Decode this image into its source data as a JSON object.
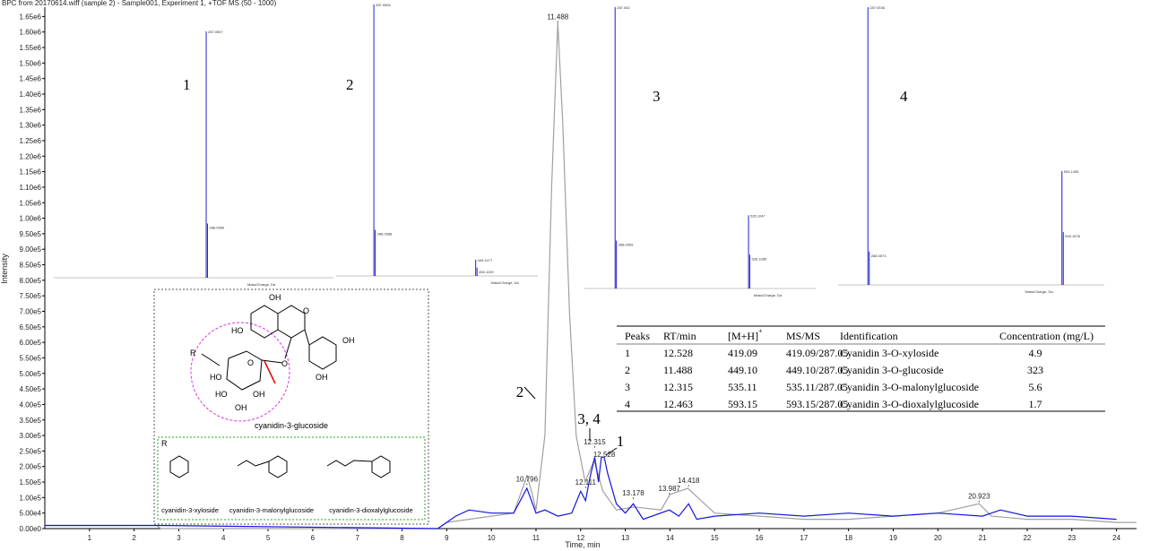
{
  "chart_data": {
    "type": "line",
    "title": "BPC from 20170614.wiff (sample 2) - Sample001, Experiment 1, +TOF MS (50 - 1000)",
    "x_label": "Time, min",
    "y_label": "Intensity",
    "xlim": [
      0,
      24.45
    ],
    "ylim": [
      0,
      1680000
    ],
    "xticks": [
      1,
      2,
      3,
      4,
      5,
      6,
      7,
      8,
      9,
      10,
      11,
      12,
      13,
      14,
      15,
      16,
      17,
      18,
      19,
      20,
      21,
      22,
      23,
      24
    ],
    "yticks": [
      {
        "value": 0,
        "label": "0.00e0"
      },
      {
        "value": 50000,
        "label": "5.00e4"
      },
      {
        "value": 100000,
        "label": "1.00e5"
      },
      {
        "value": 150000,
        "label": "1.50e5"
      },
      {
        "value": 200000,
        "label": "2.00e5"
      },
      {
        "value": 250000,
        "label": "2.50e5"
      },
      {
        "value": 300000,
        "label": "3.00e5"
      },
      {
        "value": 350000,
        "label": "3.50e5"
      },
      {
        "value": 400000,
        "label": "4.00e5"
      },
      {
        "value": 450000,
        "label": "4.50e5"
      },
      {
        "value": 500000,
        "label": "5.00e5"
      },
      {
        "value": 550000,
        "label": "5.50e5"
      },
      {
        "value": 600000,
        "label": "6.00e5"
      },
      {
        "value": 650000,
        "label": "6.50e5"
      },
      {
        "value": 700000,
        "label": "7.00e5"
      },
      {
        "value": 750000,
        "label": "7.50e5"
      },
      {
        "value": 800000,
        "label": "8.00e5"
      },
      {
        "value": 850000,
        "label": "8.50e5"
      },
      {
        "value": 900000,
        "label": "9.00e5"
      },
      {
        "value": 950000,
        "label": "9.50e5"
      },
      {
        "value": 1000000,
        "label": "1.00e6"
      },
      {
        "value": 1050000,
        "label": "1.05e6"
      },
      {
        "value": 1100000,
        "label": "1.10e6"
      },
      {
        "value": 1150000,
        "label": "1.15e6"
      },
      {
        "value": 1200000,
        "label": "1.20e6"
      },
      {
        "value": 1250000,
        "label": "1.25e6"
      },
      {
        "value": 1300000,
        "label": "1.30e6"
      },
      {
        "value": 1350000,
        "label": "1.35e6"
      },
      {
        "value": 1400000,
        "label": "1.40e6"
      },
      {
        "value": 1450000,
        "label": "1.45e6"
      },
      {
        "value": 1500000,
        "label": "1.50e6"
      },
      {
        "value": 1550000,
        "label": "1.55e6"
      },
      {
        "value": 1600000,
        "label": "1.60e6"
      },
      {
        "value": 1650000,
        "label": "1.65e6"
      }
    ],
    "series": [
      {
        "color": "#a0a0a0",
        "x": [
          0,
          2.5,
          2.6,
          8.8,
          9,
          9.5,
          10,
          10.5,
          10.7,
          10.8,
          10.9,
          11.0,
          11.2,
          11.35,
          11.488,
          11.6,
          11.75,
          11.9,
          12.1,
          12.3,
          12.5,
          12.8,
          13.2,
          13.8,
          14.0,
          14.4,
          15,
          16,
          17,
          18,
          19,
          20,
          20.923,
          21.2,
          22,
          23,
          24,
          24.45
        ],
        "values": [
          10000,
          10000,
          0,
          0,
          20000,
          30000,
          40000,
          50000,
          130000,
          170000,
          120000,
          60000,
          300000,
          1100000,
          1630000,
          1300000,
          700000,
          300000,
          150000,
          220000,
          120000,
          60000,
          70000,
          60000,
          110000,
          130000,
          50000,
          40000,
          30000,
          30000,
          40000,
          50000,
          80000,
          40000,
          30000,
          30000,
          20000,
          20000
        ]
      },
      {
        "color": "#1414e0",
        "x": [
          0,
          2.6,
          8.8,
          9.2,
          9.5,
          10,
          10.5,
          10.796,
          11,
          11.2,
          11.488,
          11.8,
          12.0,
          12.111,
          12.2,
          12.315,
          12.4,
          12.463,
          12.528,
          12.6,
          12.8,
          13.0,
          13.178,
          13.4,
          13.987,
          14.2,
          14.418,
          14.6,
          15,
          16,
          17,
          18,
          19,
          20,
          21,
          21.4,
          22,
          23,
          24
        ],
        "values": [
          10000,
          10000,
          0,
          40000,
          60000,
          50000,
          50000,
          130000,
          50000,
          60000,
          40000,
          50000,
          120000,
          90000,
          160000,
          230000,
          150000,
          230000,
          230000,
          180000,
          80000,
          50000,
          80000,
          30000,
          60000,
          40000,
          80000,
          30000,
          40000,
          50000,
          40000,
          50000,
          40000,
          50000,
          40000,
          60000,
          40000,
          40000,
          30000
        ]
      }
    ],
    "peak_labels": {
      "x": [
        10.796,
        11.488,
        12.111,
        12.315,
        12.528,
        13.178,
        13.987,
        14.418,
        20.923
      ],
      "y": [
        140000,
        1630000,
        130000,
        260000,
        220000,
        95000,
        110000,
        135000,
        85000
      ]
    }
  },
  "peak_numbers": [
    "1",
    "2",
    "3, 4"
  ],
  "spectra": [
    {
      "label": "1",
      "x_label": "Mass/Charge, Da",
      "xlim": [
        20,
        510
      ],
      "mz": [
        287.0557,
        288.0589
      ],
      "intensity": [
        100,
        22
      ]
    },
    {
      "label": "2",
      "x_label": "Mass/Charge, Da",
      "xlim": [
        227,
        548
      ],
      "mz": [
        287.0554,
        288.0588,
        449.1077,
        450.1109
      ],
      "intensity": [
        100,
        17,
        6,
        3
      ]
    },
    {
      "label": "3",
      "x_label": "Mass/Charge, Da",
      "xlim": [
        230,
        660
      ],
      "mz": [
        287.052,
        288.0559,
        535.1047,
        536.1085
      ],
      "intensity": [
        100,
        17,
        26,
        12
      ]
    },
    {
      "label": "4",
      "x_label": "Mass/Charge, Da",
      "xlim": [
        240,
        660
      ],
      "mz": [
        287.0536,
        288.0573,
        593.1495,
        594.1576
      ],
      "intensity": [
        100,
        12,
        41,
        19
      ]
    }
  ],
  "structure": {
    "name": "cyanidin-3-glucoside",
    "r_label": "R",
    "atoms": [
      "OH",
      "HO",
      "O",
      "OH",
      "OH",
      "O",
      "HO",
      "O",
      "HO",
      "OH",
      "OH"
    ],
    "r_groups": [
      "cyanidin-3-xyloside",
      "cyanidin-3-malonylglucoside",
      "cyanidin-3-dioxalylglucoside"
    ]
  },
  "table": {
    "header": [
      "Peaks",
      "RT/min",
      "[M+H]",
      "MS/MS",
      "Identification",
      "Concentration (mg/L)"
    ],
    "header_sup": "+",
    "rows": [
      [
        "1",
        "12.528",
        "419.09",
        "419.09/287.05",
        "Cyanidin 3-O-xyloside",
        "4.9"
      ],
      [
        "2",
        "11.488",
        "449.10",
        "449.10/287.05",
        "Cyanidin 3-O-glucoside",
        "323"
      ],
      [
        "3",
        "12.315",
        "535.11",
        "535.11/287.05",
        "Cyanidin 3-O-malonylglucoside",
        "5.6"
      ],
      [
        "4",
        "12.463",
        "593.15",
        "593.15/287.05",
        "Cyanidin 3-O-dioxalylglucoside",
        "1.7"
      ]
    ]
  }
}
